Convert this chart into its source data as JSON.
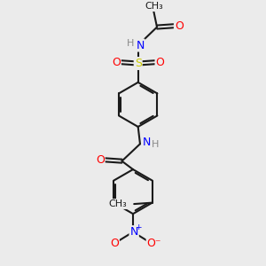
{
  "background_color": "#ebebeb",
  "bond_color": "#1a1a1a",
  "atom_colors": {
    "N": "#0000ff",
    "O": "#ff0000",
    "S": "#cccc00",
    "H": "#888888",
    "C": "#1a1a1a"
  },
  "figsize": [
    3.0,
    3.0
  ],
  "dpi": 100,
  "xlim": [
    0,
    10
  ],
  "ylim": [
    0,
    10
  ]
}
